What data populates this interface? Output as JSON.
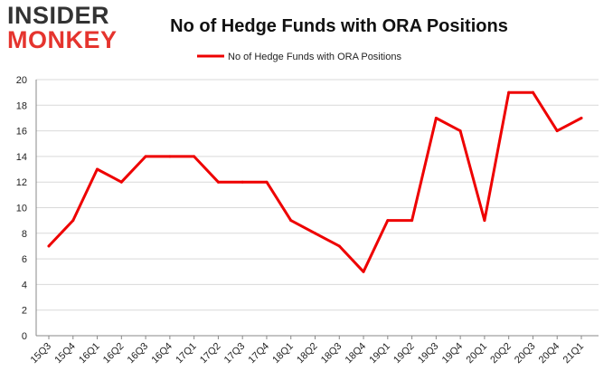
{
  "logo": {
    "line1": "INSIDER",
    "line2": "MONKEY"
  },
  "colors": {
    "series": "#ee0000",
    "grid": "#d9d9d9",
    "axis": "#888888",
    "logo_dark": "#333333",
    "logo_accent": "#e5342e"
  },
  "chart_data": {
    "type": "line",
    "title": "No of Hedge Funds with ORA Positions",
    "xlabel": "",
    "ylabel": "",
    "ylim": [
      0,
      20
    ],
    "yticks": [
      0,
      2,
      4,
      6,
      8,
      10,
      12,
      14,
      16,
      18,
      20
    ],
    "grid": "horizontal",
    "legend_position": "top-center",
    "categories": [
      "15Q3",
      "15Q4",
      "16Q1",
      "16Q2",
      "16Q3",
      "16Q4",
      "17Q1",
      "17Q2",
      "17Q3",
      "17Q4",
      "18Q1",
      "18Q2",
      "18Q3",
      "18Q4",
      "19Q1",
      "19Q2",
      "19Q3",
      "19Q4",
      "20Q1",
      "20Q2",
      "20Q3",
      "20Q4",
      "21Q1"
    ],
    "series": [
      {
        "name": "No of Hedge Funds with ORA Positions",
        "values": [
          7,
          9,
          13,
          12,
          14,
          14,
          14,
          12,
          12,
          12,
          9,
          8,
          7,
          5,
          9,
          9,
          17,
          16,
          9,
          19,
          19,
          16,
          17
        ]
      }
    ]
  }
}
